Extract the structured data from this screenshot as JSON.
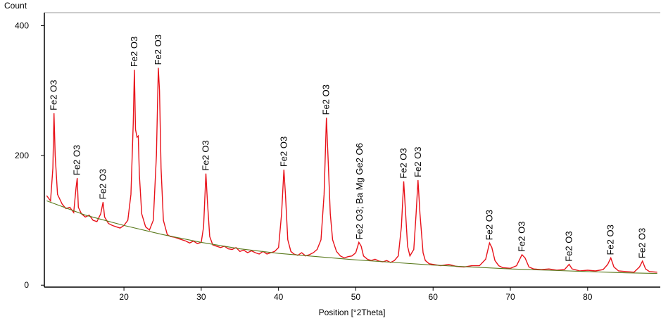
{
  "chart_data": {
    "type": "line",
    "y_label": "Count",
    "x_label": "Position [°2Theta]",
    "xlim": [
      9.7,
      89.4
    ],
    "ylim": [
      -3,
      420
    ],
    "xticks": [
      20,
      30,
      40,
      50,
      60,
      70,
      80
    ],
    "yticks": [
      0,
      200,
      400
    ],
    "series": [
      {
        "color": "#e8121a",
        "x": [
          10,
          10.5,
          10.8,
          10.95,
          11.1,
          11.4,
          12,
          12.5,
          13,
          13.5,
          13.8,
          13.95,
          14.1,
          14.5,
          15,
          15.5,
          16,
          16.5,
          17,
          17.3,
          17.5,
          18,
          18.5,
          19,
          19.5,
          20,
          20.5,
          20.9,
          21.2,
          21.35,
          21.5,
          21.7,
          21.85,
          22,
          22.3,
          22.8,
          23.3,
          23.8,
          24.2,
          24.45,
          24.6,
          24.8,
          25.1,
          25.6,
          26,
          26.5,
          27,
          27.5,
          28,
          28.5,
          29,
          29.5,
          30,
          30.3,
          30.6,
          30.8,
          31.1,
          31.5,
          32,
          32.5,
          33,
          33.5,
          34,
          34.5,
          35,
          35.5,
          36,
          36.5,
          37,
          37.5,
          38,
          38.5,
          39,
          39.5,
          40,
          40.4,
          40.7,
          40.9,
          41.2,
          41.6,
          42,
          42.5,
          43,
          43.5,
          44,
          44.5,
          45,
          45.5,
          45.9,
          46.2,
          46.4,
          46.7,
          47,
          47.5,
          48,
          48.5,
          49,
          49.5,
          50,
          50.4,
          50.7,
          51,
          51.5,
          52,
          52.5,
          53,
          53.5,
          54,
          54.5,
          55,
          55.5,
          55.9,
          56.2,
          56.4,
          56.7,
          57,
          57.5,
          57.8,
          58.05,
          58.3,
          58.7,
          59,
          59.5,
          60,
          61,
          62,
          63,
          64,
          65,
          66,
          66.8,
          67.3,
          67.6,
          68,
          68.5,
          69,
          70,
          70.8,
          71.5,
          71.9,
          72.4,
          73,
          74,
          75,
          76,
          77,
          77.6,
          78,
          79,
          80,
          81,
          82,
          82.6,
          83,
          83.4,
          84,
          85,
          86,
          86.7,
          87.1,
          87.5,
          88,
          89
        ],
        "values": [
          138,
          130,
          180,
          265,
          200,
          140,
          125,
          118,
          120,
          112,
          150,
          165,
          120,
          110,
          105,
          108,
          100,
          98,
          110,
          128,
          105,
          95,
          92,
          90,
          88,
          92,
          100,
          140,
          250,
          332,
          240,
          228,
          230,
          170,
          110,
          90,
          85,
          100,
          200,
          335,
          300,
          180,
          100,
          78,
          75,
          74,
          72,
          70,
          68,
          65,
          68,
          64,
          66,
          90,
          172,
          130,
          75,
          62,
          60,
          58,
          60,
          56,
          55,
          58,
          52,
          54,
          50,
          53,
          50,
          48,
          52,
          48,
          50,
          52,
          58,
          110,
          178,
          140,
          70,
          52,
          48,
          46,
          50,
          45,
          47,
          50,
          55,
          70,
          140,
          258,
          200,
          110,
          70,
          52,
          45,
          42,
          44,
          45,
          50,
          66,
          60,
          45,
          40,
          38,
          40,
          37,
          36,
          38,
          35,
          38,
          45,
          90,
          160,
          120,
          60,
          45,
          55,
          110,
          162,
          110,
          50,
          38,
          33,
          32,
          30,
          32,
          29,
          28,
          30,
          30,
          40,
          65,
          58,
          38,
          30,
          27,
          26,
          30,
          47,
          42,
          28,
          25,
          24,
          25,
          23,
          24,
          32,
          25,
          22,
          23,
          22,
          24,
          32,
          42,
          28,
          22,
          21,
          20,
          28,
          37,
          25,
          21,
          20
        ]
      },
      {
        "color": "#5a7a1e",
        "x": [
          10,
          15,
          20,
          25,
          30,
          35,
          40,
          45,
          50,
          55,
          60,
          65,
          70,
          75,
          80,
          85,
          89
        ],
        "values": [
          130,
          108,
          92,
          78,
          66,
          56,
          49,
          44,
          39,
          35,
          31,
          28,
          25,
          23,
          21,
          19,
          18
        ]
      }
    ],
    "annotations": [
      {
        "text": "Fe2 O3",
        "x": 10.95,
        "y": 265
      },
      {
        "text": "Fe2 O3",
        "x": 13.95,
        "y": 165
      },
      {
        "text": "Fe2 O3",
        "x": 17.3,
        "y": 128
      },
      {
        "text": "Fe2 O3",
        "x": 21.35,
        "y": 332
      },
      {
        "text": "Fe2 O3",
        "x": 24.45,
        "y": 335
      },
      {
        "text": "Fe2 O3",
        "x": 30.6,
        "y": 172
      },
      {
        "text": "Fe2 O3",
        "x": 40.7,
        "y": 178
      },
      {
        "text": "Fe2 O3",
        "x": 46.2,
        "y": 258
      },
      {
        "text": "Fe2 O3; Ba Mg Ge2 O6",
        "x": 50.5,
        "y": 66
      },
      {
        "text": "Fe2 O3",
        "x": 56.2,
        "y": 160
      },
      {
        "text": "Fe2 O3",
        "x": 58.05,
        "y": 162
      },
      {
        "text": "Fe2 O3",
        "x": 67.3,
        "y": 65
      },
      {
        "text": "Fe2 O3",
        "x": 71.5,
        "y": 47
      },
      {
        "text": "Fe2 O3",
        "x": 77.6,
        "y": 32
      },
      {
        "text": "Fe2 O3",
        "x": 83,
        "y": 42
      },
      {
        "text": "Fe2 O3",
        "x": 87.1,
        "y": 37
      }
    ]
  }
}
